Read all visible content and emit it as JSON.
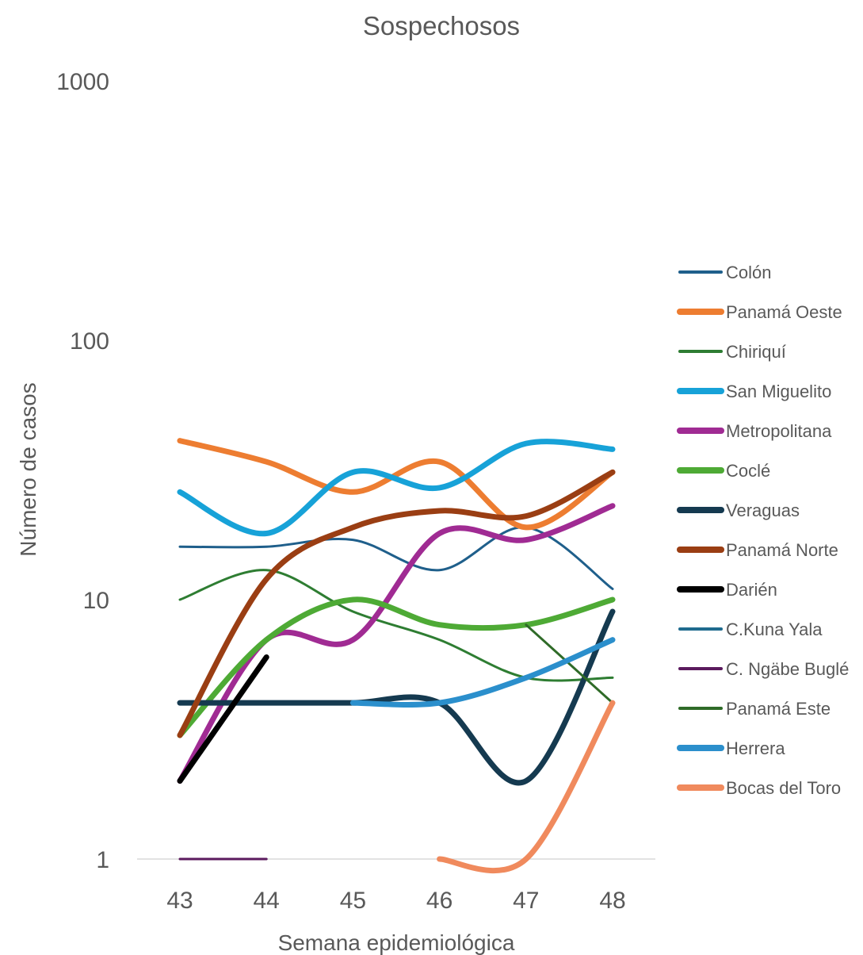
{
  "chart_data": {
    "type": "line",
    "title": "Sospechosos",
    "xlabel": "Semana epidemiológica",
    "ylabel": "Número de casos",
    "x": [
      43,
      44,
      45,
      46,
      47,
      48
    ],
    "y_scale": "log",
    "ylim": [
      1,
      1000
    ],
    "y_ticks": [
      1,
      10,
      100,
      1000
    ],
    "grid": false,
    "legend_position": "right",
    "series": [
      {
        "name": "Colón",
        "color": "#1f5f8b",
        "width": 3,
        "values": [
          16,
          16,
          17,
          13,
          19,
          11
        ]
      },
      {
        "name": "Panamá Oeste",
        "color": "#ed7d31",
        "width": 7,
        "values": [
          41,
          34,
          26,
          34,
          19,
          31
        ]
      },
      {
        "name": "Chiriquí",
        "color": "#2e7d32",
        "width": 3,
        "values": [
          10,
          13,
          9,
          7,
          5,
          5
        ]
      },
      {
        "name": "San Miguelito",
        "color": "#17a2d8",
        "width": 7,
        "values": [
          26,
          18,
          31,
          27,
          40,
          38
        ]
      },
      {
        "name": "Metropolitana",
        "color": "#a02b93",
        "width": 7,
        "values": [
          2,
          7,
          7,
          18,
          17,
          23
        ]
      },
      {
        "name": "Coclé",
        "color": "#4eaa35",
        "width": 7,
        "values": [
          3,
          7,
          10,
          8,
          8,
          10
        ]
      },
      {
        "name": "Veraguas",
        "color": "#153a50",
        "width": 7,
        "values": [
          4,
          4,
          4,
          4,
          2,
          9
        ]
      },
      {
        "name": "Panamá Norte",
        "color": "#9a3e13",
        "width": 7,
        "values": [
          3,
          12,
          19,
          22,
          21,
          31
        ]
      },
      {
        "name": "Darién",
        "color": "#000000",
        "width": 7,
        "values": [
          2,
          6,
          null,
          null,
          null,
          null
        ]
      },
      {
        "name": "C.Kuna Yala",
        "color": "#1f6b8e",
        "width": 3,
        "values": [
          null,
          null,
          null,
          null,
          null,
          null
        ]
      },
      {
        "name": "C. Ngäbe Buglé",
        "color": "#5b1a5e",
        "width": 3,
        "values": [
          1,
          1,
          null,
          null,
          null,
          null
        ]
      },
      {
        "name": "Panamá Este",
        "color": "#2f6b28",
        "width": 3,
        "values": [
          null,
          null,
          null,
          null,
          8,
          4
        ]
      },
      {
        "name": "Herrera",
        "color": "#2b8fcc",
        "width": 7,
        "values": [
          null,
          null,
          4,
          4,
          5,
          7
        ]
      },
      {
        "name": "Bocas del Toro",
        "color": "#f08a5d",
        "width": 7,
        "values": [
          null,
          null,
          null,
          1,
          1,
          4
        ]
      }
    ]
  }
}
